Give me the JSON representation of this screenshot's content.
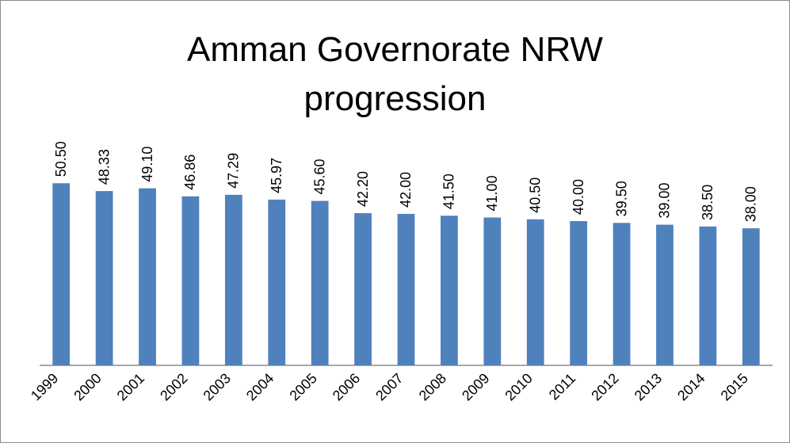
{
  "chart_data": {
    "type": "bar",
    "title": "Amman Governorate NRW progression",
    "categories": [
      "1999",
      "2000",
      "2001",
      "2002",
      "2003",
      "2004",
      "2005",
      "2006",
      "2007",
      "2008",
      "2009",
      "2010",
      "2011",
      "2012",
      "2013",
      "2014",
      "2015"
    ],
    "values": [
      50.5,
      48.33,
      49.1,
      46.86,
      47.29,
      45.97,
      45.6,
      42.2,
      42.0,
      41.5,
      41.0,
      40.5,
      40.0,
      39.5,
      39.0,
      38.5,
      38.0
    ],
    "value_labels": [
      "50.50",
      "48.33",
      "49.10",
      "46.86",
      "47.29",
      "45.97",
      "45.60",
      "42.20",
      "42.00",
      "41.50",
      "41.00",
      "40.50",
      "40.00",
      "39.50",
      "39.00",
      "38.50",
      "38.00"
    ],
    "color": "#4f81bd",
    "ylim": [
      0,
      60
    ]
  }
}
